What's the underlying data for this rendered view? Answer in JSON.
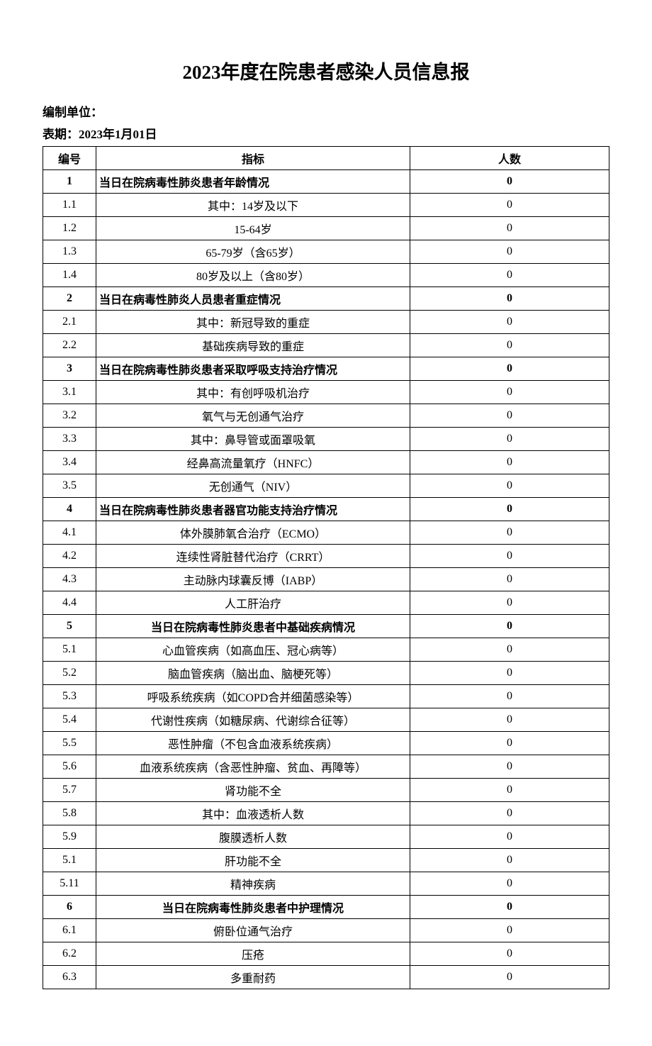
{
  "title": "2023年度在院患者感染人员信息报",
  "meta": {
    "unit_label": "编制单位：",
    "period_label": "表期：2023年1月01日"
  },
  "table": {
    "headers": [
      "编号",
      "指标",
      "人数"
    ],
    "rows": [
      {
        "num": "1",
        "metric": "当日在院病毒性肺炎患者年龄情况",
        "count": "0",
        "bold": true,
        "left": true
      },
      {
        "num": "1.1",
        "metric": "其中：14岁及以下",
        "count": "0",
        "bold": false,
        "left": false
      },
      {
        "num": "1.2",
        "metric": "15-64岁",
        "count": "0",
        "bold": false,
        "left": false
      },
      {
        "num": "1.3",
        "metric": "65-79岁（含65岁）",
        "count": "0",
        "bold": false,
        "left": false
      },
      {
        "num": "1.4",
        "metric": "80岁及以上（含80岁）",
        "count": "0",
        "bold": false,
        "left": false
      },
      {
        "num": "2",
        "metric": "当日在病毒性肺炎人员患者重症情况",
        "count": "0",
        "bold": true,
        "left": true
      },
      {
        "num": "2.1",
        "metric": "其中：新冠导致的重症",
        "count": "0",
        "bold": false,
        "left": false
      },
      {
        "num": "2.2",
        "metric": "基础疾病导致的重症",
        "count": "0",
        "bold": false,
        "left": false
      },
      {
        "num": "3",
        "metric": "当日在院病毒性肺炎患者采取呼吸支持治疗情况",
        "count": "0",
        "bold": true,
        "left": true
      },
      {
        "num": "3.1",
        "metric": "其中：有创呼吸机治疗",
        "count": "0",
        "bold": false,
        "left": false
      },
      {
        "num": "3.2",
        "metric": "氧气与无创通气治疗",
        "count": "0",
        "bold": false,
        "left": false
      },
      {
        "num": "3.3",
        "metric": "其中：鼻导管或面罩吸氧",
        "count": "0",
        "bold": false,
        "left": false
      },
      {
        "num": "3.4",
        "metric": "经鼻高流量氧疗（HNFC）",
        "count": "0",
        "bold": false,
        "left": false
      },
      {
        "num": "3.5",
        "metric": "无创通气（NIV）",
        "count": "0",
        "bold": false,
        "left": false
      },
      {
        "num": "4",
        "metric": "当日在院病毒性肺炎患者器官功能支持治疗情况",
        "count": "0",
        "bold": true,
        "left": true
      },
      {
        "num": "4.1",
        "metric": "体外膜肺氧合治疗（ECMO）",
        "count": "0",
        "bold": false,
        "left": false
      },
      {
        "num": "4.2",
        "metric": "连续性肾脏替代治疗（CRRT）",
        "count": "0",
        "bold": false,
        "left": false
      },
      {
        "num": "4.3",
        "metric": "主动脉内球囊反博（IABP）",
        "count": "0",
        "bold": false,
        "left": false
      },
      {
        "num": "4.4",
        "metric": "人工肝治疗",
        "count": "0",
        "bold": false,
        "left": false
      },
      {
        "num": "5",
        "metric": "当日在院病毒性肺炎患者中基础疾病情况",
        "count": "0",
        "bold": true,
        "left": false
      },
      {
        "num": "5.1",
        "metric": "心血管疾病（如高血压、冠心病等）",
        "count": "0",
        "bold": false,
        "left": false
      },
      {
        "num": "5.2",
        "metric": "脑血管疾病（脑出血、脑梗死等）",
        "count": "0",
        "bold": false,
        "left": false
      },
      {
        "num": "5.3",
        "metric": "呼吸系统疾病（如COPD合并细菌感染等）",
        "count": "0",
        "bold": false,
        "left": false
      },
      {
        "num": "5.4",
        "metric": "代谢性疾病（如糖尿病、代谢综合征等）",
        "count": "0",
        "bold": false,
        "left": false
      },
      {
        "num": "5.5",
        "metric": "恶性肿瘤（不包含血液系统疾病）",
        "count": "0",
        "bold": false,
        "left": false
      },
      {
        "num": "5.6",
        "metric": "血液系统疾病（含恶性肿瘤、贫血、再障等）",
        "count": "0",
        "bold": false,
        "left": false
      },
      {
        "num": "5.7",
        "metric": "肾功能不全",
        "count": "0",
        "bold": false,
        "left": false
      },
      {
        "num": "5.8",
        "metric": "其中：血液透析人数",
        "count": "0",
        "bold": false,
        "left": false
      },
      {
        "num": "5.9",
        "metric": "腹膜透析人数",
        "count": "0",
        "bold": false,
        "left": false
      },
      {
        "num": "5.1",
        "metric": "肝功能不全",
        "count": "0",
        "bold": false,
        "left": false
      },
      {
        "num": "5.11",
        "metric": "精神疾病",
        "count": "0",
        "bold": false,
        "left": false
      },
      {
        "num": "6",
        "metric": "当日在院病毒性肺炎患者中护理情况",
        "count": "0",
        "bold": true,
        "left": false
      },
      {
        "num": "6.1",
        "metric": "俯卧位通气治疗",
        "count": "0",
        "bold": false,
        "left": false
      },
      {
        "num": "6.2",
        "metric": "压疮",
        "count": "0",
        "bold": false,
        "left": false
      },
      {
        "num": "6.3",
        "metric": "多重耐药",
        "count": "0",
        "bold": false,
        "left": false
      }
    ]
  }
}
